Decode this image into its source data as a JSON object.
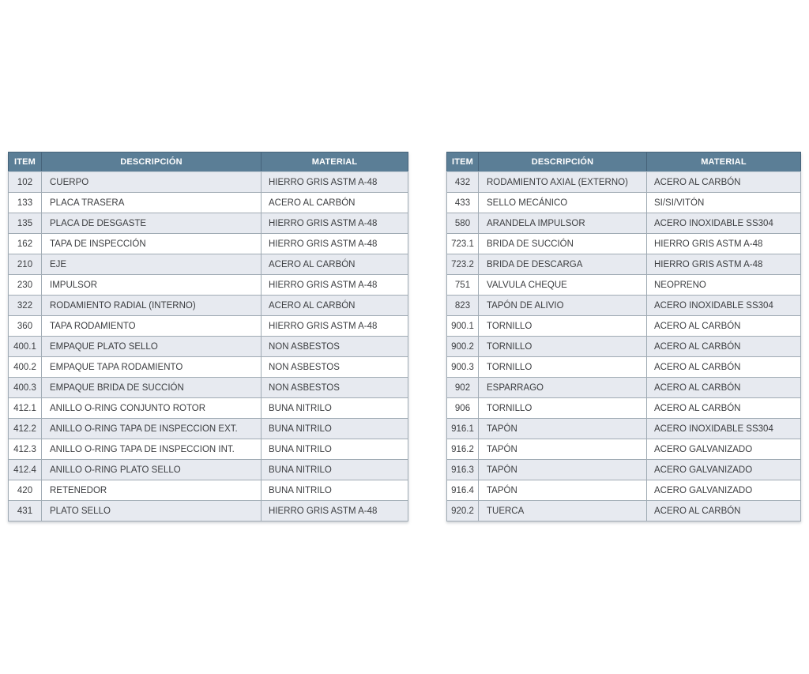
{
  "columns": [
    "ITEM",
    "DESCRIPCIÓN",
    "MATERIAL"
  ],
  "colors": {
    "header_bg": "#5b7e96",
    "header_text": "#ffffff",
    "row_alt_bg": "#e7eaf0",
    "row_bg": "#ffffff",
    "cell_border": "#a0abb4",
    "text": "#3c3e41"
  },
  "left_table": {
    "rows": [
      {
        "item": "102",
        "descripcion": "CUERPO",
        "material": "HIERRO GRIS ASTM A-48"
      },
      {
        "item": "133",
        "descripcion": "PLACA TRASERA",
        "material": "ACERO AL CARBÓN"
      },
      {
        "item": "135",
        "descripcion": "PLACA DE DESGASTE",
        "material": "HIERRO GRIS ASTM A-48"
      },
      {
        "item": "162",
        "descripcion": "TAPA DE INSPECCIÓN",
        "material": "HIERRO GRIS ASTM A-48"
      },
      {
        "item": "210",
        "descripcion": "EJE",
        "material": "ACERO AL CARBÓN"
      },
      {
        "item": "230",
        "descripcion": "IMPULSOR",
        "material": "HIERRO GRIS ASTM A-48"
      },
      {
        "item": "322",
        "descripcion": "RODAMIENTO RADIAL (INTERNO)",
        "material": "ACERO AL CARBÓN"
      },
      {
        "item": "360",
        "descripcion": "TAPA RODAMIENTO",
        "material": "HIERRO GRIS ASTM A-48"
      },
      {
        "item": "400.1",
        "descripcion": "EMPAQUE PLATO SELLO",
        "material": "NON ASBESTOS"
      },
      {
        "item": "400.2",
        "descripcion": "EMPAQUE TAPA RODAMIENTO",
        "material": "NON ASBESTOS"
      },
      {
        "item": "400.3",
        "descripcion": "EMPAQUE BRIDA DE SUCCIÓN",
        "material": "NON ASBESTOS"
      },
      {
        "item": "412.1",
        "descripcion": "ANILLO O-RING CONJUNTO ROTOR",
        "material": "BUNA NITRILO"
      },
      {
        "item": "412.2",
        "descripcion": "ANILLO O-RING TAPA DE INSPECCION EXT.",
        "material": "BUNA NITRILO"
      },
      {
        "item": "412.3",
        "descripcion": "ANILLO O-RING TAPA DE INSPECCION INT.",
        "material": "BUNA NITRILO"
      },
      {
        "item": "412.4",
        "descripcion": "ANILLO O-RING PLATO SELLO",
        "material": "BUNA NITRILO"
      },
      {
        "item": "420",
        "descripcion": "RETENEDOR",
        "material": "BUNA NITRILO"
      },
      {
        "item": "431",
        "descripcion": "PLATO SELLO",
        "material": "HIERRO GRIS ASTM A-48"
      }
    ]
  },
  "right_table": {
    "rows": [
      {
        "item": "432",
        "descripcion": "RODAMIENTO AXIAL (EXTERNO)",
        "material": "ACERO AL CARBÓN"
      },
      {
        "item": "433",
        "descripcion": "SELLO MECÁNICO",
        "material": "SI/SI/VITÓN"
      },
      {
        "item": "580",
        "descripcion": "ARANDELA IMPULSOR",
        "material": "ACERO INOXIDABLE SS304"
      },
      {
        "item": "723.1",
        "descripcion": "BRIDA DE SUCCIÓN",
        "material": "HIERRO GRIS ASTM A-48"
      },
      {
        "item": "723.2",
        "descripcion": "BRIDA DE DESCARGA",
        "material": "HIERRO GRIS ASTM A-48"
      },
      {
        "item": "751",
        "descripcion": "VALVULA CHEQUE",
        "material": "NEOPRENO"
      },
      {
        "item": "823",
        "descripcion": "TAPÓN DE ALIVIO",
        "material": "ACERO INOXIDABLE SS304"
      },
      {
        "item": "900.1",
        "descripcion": "TORNILLO",
        "material": "ACERO AL CARBÓN"
      },
      {
        "item": "900.2",
        "descripcion": "TORNILLO",
        "material": "ACERO AL CARBÓN"
      },
      {
        "item": "900.3",
        "descripcion": "TORNILLO",
        "material": "ACERO AL CARBÓN"
      },
      {
        "item": "902",
        "descripcion": "ESPARRAGO",
        "material": "ACERO AL CARBÓN"
      },
      {
        "item": "906",
        "descripcion": "TORNILLO",
        "material": "ACERO AL CARBÓN"
      },
      {
        "item": "916.1",
        "descripcion": "TAPÓN",
        "material": "ACERO INOXIDABLE SS304"
      },
      {
        "item": "916.2",
        "descripcion": "TAPÓN",
        "material": "ACERO GALVANIZADO"
      },
      {
        "item": "916.3",
        "descripcion": "TAPÓN",
        "material": "ACERO GALVANIZADO"
      },
      {
        "item": "916.4",
        "descripcion": "TAPÓN",
        "material": "ACERO GALVANIZADO"
      },
      {
        "item": "920.2",
        "descripcion": "TUERCA",
        "material": "ACERO AL CARBÓN"
      }
    ]
  }
}
